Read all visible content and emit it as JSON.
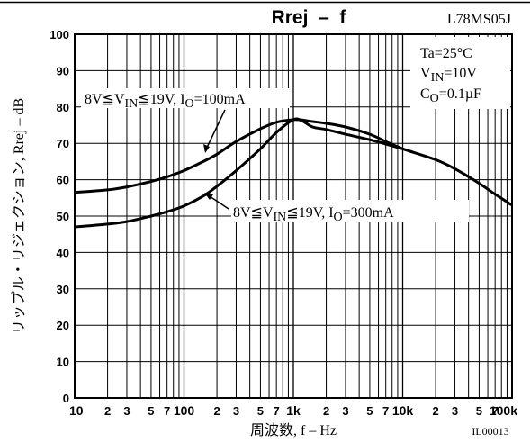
{
  "chart_data": {
    "type": "line",
    "title": "Rrej  –  f",
    "part_number": "L78MS05J",
    "ylabel": "リップル・リジェクション, Rrej – dB",
    "xlabel": "周波数, f – Hz",
    "figure_code": "IL00013",
    "x_scale": "log",
    "xlim": [
      10,
      100000
    ],
    "ylim": [
      0,
      100
    ],
    "grid": true,
    "y_ticks": [
      0,
      10,
      20,
      30,
      40,
      50,
      60,
      70,
      80,
      90,
      100
    ],
    "x_tick_labels": [
      {
        "value": 10,
        "label": "10"
      },
      {
        "value": 20,
        "label": "2"
      },
      {
        "value": 30,
        "label": "3"
      },
      {
        "value": 50,
        "label": "5"
      },
      {
        "value": 70,
        "label": "7"
      },
      {
        "value": 100,
        "label": "100"
      },
      {
        "value": 200,
        "label": "2"
      },
      {
        "value": 300,
        "label": "3"
      },
      {
        "value": 500,
        "label": "5"
      },
      {
        "value": 700,
        "label": "7"
      },
      {
        "value": 1000,
        "label": "1k"
      },
      {
        "value": 2000,
        "label": "2"
      },
      {
        "value": 3000,
        "label": "3"
      },
      {
        "value": 5000,
        "label": "5"
      },
      {
        "value": 7000,
        "label": "7"
      },
      {
        "value": 10000,
        "label": "10k"
      },
      {
        "value": 20000,
        "label": "2"
      },
      {
        "value": 30000,
        "label": "3"
      },
      {
        "value": 50000,
        "label": "5"
      },
      {
        "value": 70000,
        "label": "7"
      },
      {
        "value": 100000,
        "label": "100k"
      }
    ],
    "conditions": [
      "Ta=25°C",
      "VIN=10V",
      "CO=0.1µF"
    ],
    "series": [
      {
        "name": "8V≦VIN≦19V, IO=100mA",
        "x": [
          10,
          20,
          30,
          50,
          70,
          100,
          150,
          200,
          300,
          500,
          700,
          1000,
          1200,
          1500,
          2000,
          3000,
          5000,
          7000,
          10000,
          20000,
          30000,
          50000,
          70000,
          100000
        ],
        "y": [
          56.5,
          57.2,
          58,
          59.5,
          60.8,
          62.5,
          65,
          67,
          70.5,
          74,
          75.8,
          76.5,
          76.4,
          76,
          75.5,
          74.5,
          72.5,
          70.5,
          68.5,
          65.5,
          63,
          59,
          56,
          53
        ]
      },
      {
        "name": "8V≦VIN≦19V, IO=300mA",
        "x": [
          10,
          20,
          30,
          50,
          70,
          100,
          150,
          200,
          300,
          500,
          700,
          1000,
          1200,
          1500,
          2000,
          3000,
          5000,
          7000,
          10000
        ],
        "y": [
          47,
          47.8,
          48.5,
          50,
          51.2,
          52.8,
          55.5,
          58.2,
          62.5,
          68.5,
          73,
          76.5,
          76.2,
          74.5,
          73.8,
          72.5,
          71,
          69.8,
          68.5
        ]
      }
    ]
  }
}
